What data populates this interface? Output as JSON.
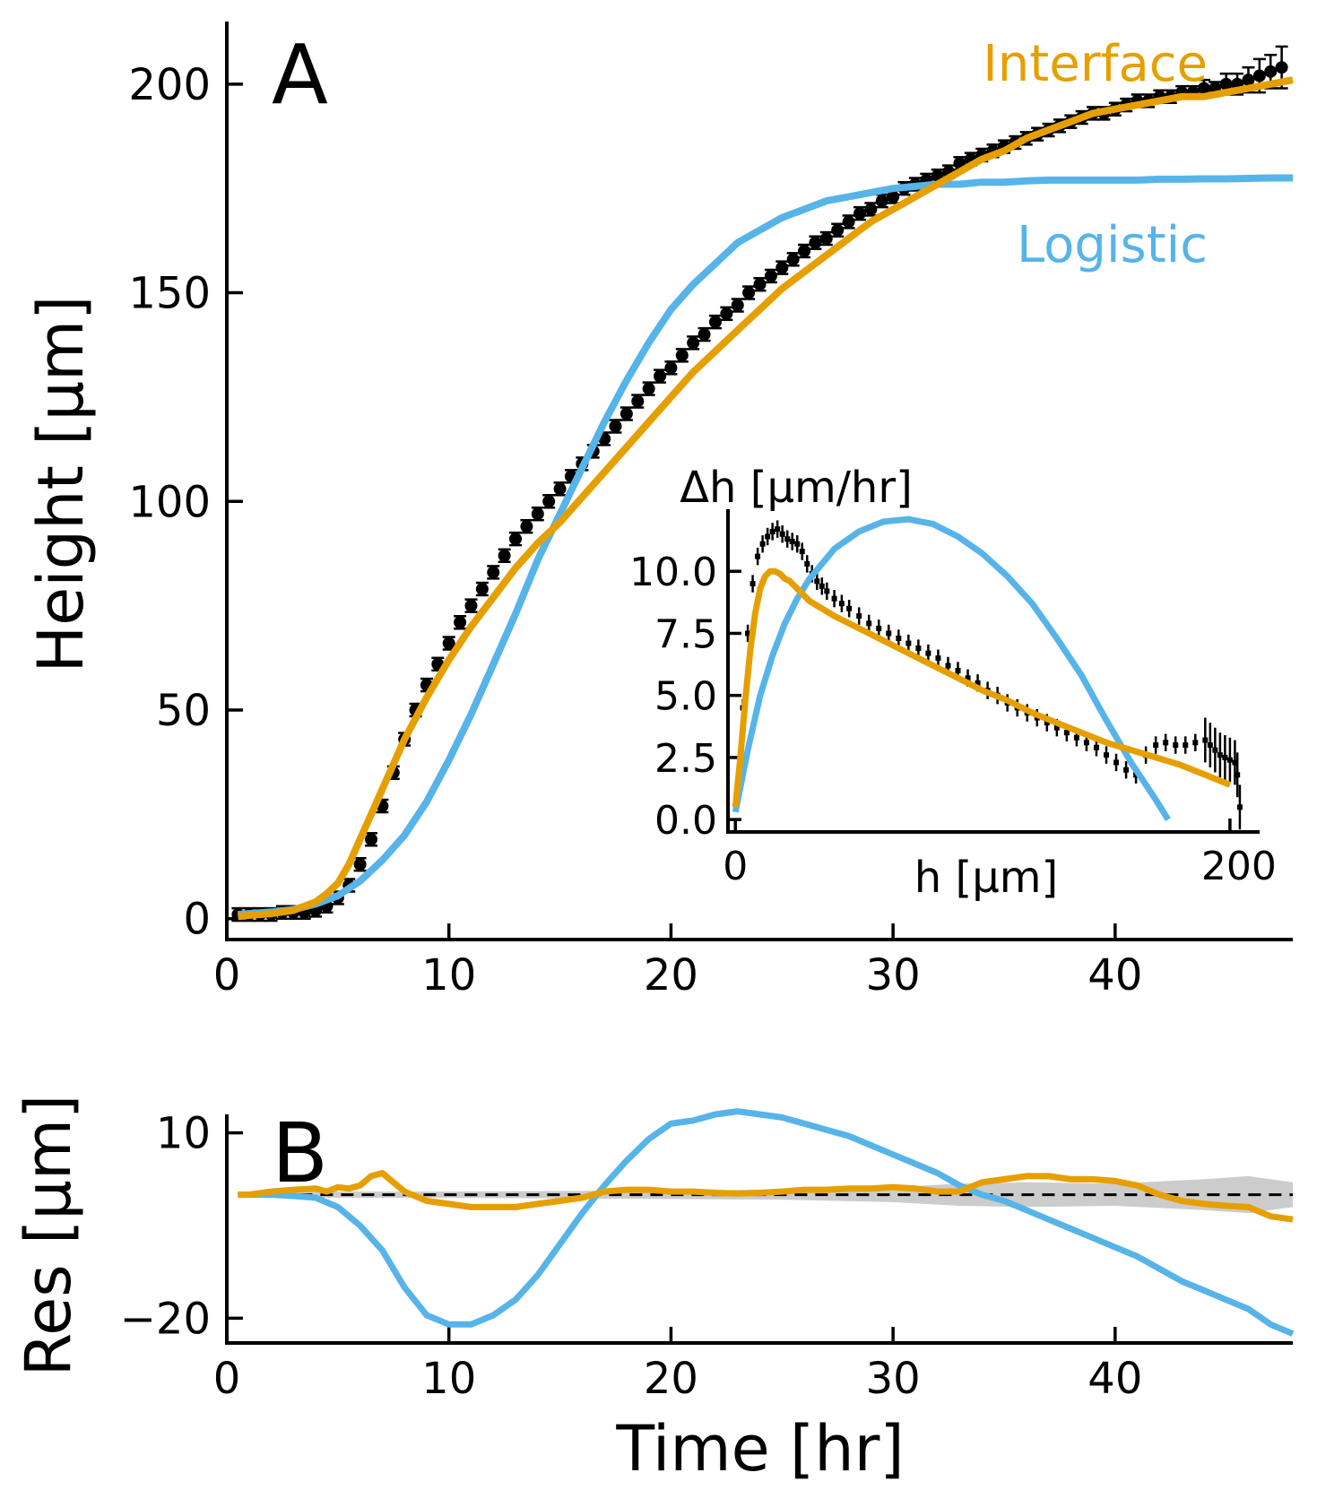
{
  "colors": {
    "interface": "#E69F00",
    "logistic": "#56B4E9",
    "data": "#000000",
    "band": "#cccccc"
  },
  "chart_data": [
    {
      "type": "line",
      "panel": "A",
      "xlabel": "",
      "ylabel": "Height [μm]",
      "xlim": [
        0,
        48
      ],
      "ylim": [
        -5,
        215
      ],
      "xticks": [
        "0",
        "10",
        "20",
        "30",
        "40"
      ],
      "yticks": [
        "0",
        "50",
        "100",
        "150",
        "200"
      ],
      "annotations": [
        "Interface",
        "Logistic"
      ],
      "data_series": {
        "name": "",
        "x": [
          0.5,
          1,
          1.5,
          2,
          2.5,
          3,
          3.5,
          4,
          4.5,
          5,
          5.5,
          6,
          6.5,
          7,
          7.5,
          8,
          8.5,
          9,
          9.5,
          10,
          10.5,
          11,
          11.5,
          12,
          12.5,
          13,
          13.5,
          14,
          14.5,
          15,
          15.5,
          16,
          16.5,
          17,
          17.5,
          18,
          18.5,
          19,
          19.5,
          20,
          20.5,
          21,
          21.5,
          22,
          22.5,
          23,
          23.5,
          24,
          24.5,
          25,
          25.5,
          26,
          26.5,
          27,
          27.5,
          28,
          28.5,
          29,
          29.5,
          30,
          30.5,
          31,
          31.5,
          32,
          32.5,
          33,
          33.5,
          34,
          34.5,
          35,
          35.5,
          36,
          36.5,
          37,
          37.5,
          38,
          38.5,
          39,
          39.5,
          40,
          40.5,
          41,
          41.5,
          42,
          42.5,
          43,
          43.5,
          44,
          44.5,
          45,
          45.5,
          46,
          46.5,
          47,
          47.5
        ],
        "y": [
          1,
          1,
          1,
          1,
          1.5,
          1.5,
          1.5,
          2,
          3,
          5,
          8,
          13,
          19,
          27,
          35,
          43,
          50,
          56,
          61,
          66,
          71,
          75,
          79,
          83,
          87,
          91,
          94,
          97,
          100,
          103,
          106,
          109,
          112,
          115,
          118,
          121,
          124,
          127,
          130,
          132,
          135,
          138,
          140,
          143,
          145,
          147,
          150,
          152,
          154,
          156,
          158,
          160,
          162,
          163,
          165,
          167,
          169,
          170,
          172,
          173,
          175,
          176,
          177,
          178,
          179,
          181,
          182,
          183,
          184,
          185,
          186,
          187,
          188,
          189,
          190,
          191,
          192,
          193,
          193,
          194,
          195,
          196,
          196,
          197,
          197,
          198,
          198,
          199,
          199,
          200,
          200,
          201,
          202,
          203,
          204
        ],
        "err_small": 1.5,
        "err_large": [
          [
            44,
            2
          ],
          [
            45,
            2.5
          ],
          [
            45.5,
            2.5
          ],
          [
            46,
            3
          ],
          [
            46.5,
            4
          ],
          [
            47,
            4
          ],
          [
            47.5,
            5
          ]
        ]
      },
      "series": [
        {
          "name": "Interface",
          "x": [
            0.5,
            1,
            2,
            3,
            4,
            4.5,
            5,
            5.5,
            6,
            6.5,
            7,
            8,
            9,
            10,
            11,
            12,
            13,
            14,
            15,
            16,
            17,
            18,
            19,
            20,
            21,
            22,
            23,
            24,
            25,
            26,
            27,
            28,
            29,
            30,
            31,
            32,
            33,
            34,
            35,
            36,
            37,
            38,
            39,
            40,
            41,
            42,
            43,
            44,
            45,
            46,
            47,
            48
          ],
          "y": [
            0.5,
            0.8,
            1.2,
            2,
            4,
            6,
            8.5,
            13,
            19,
            25,
            31,
            43,
            53,
            62,
            70,
            77,
            84,
            90,
            95,
            101,
            107,
            113,
            119,
            125,
            131,
            136,
            141,
            146,
            151,
            155,
            159,
            163,
            167,
            170,
            173,
            176,
            179,
            182,
            184,
            187,
            189,
            191,
            193,
            194,
            195,
            196,
            197,
            197,
            198,
            199,
            200,
            201
          ]
        },
        {
          "name": "Logistic",
          "x": [
            0.5,
            1,
            2,
            3,
            4,
            5,
            6,
            7,
            8,
            9,
            10,
            11,
            12,
            13,
            14,
            15,
            16,
            17,
            18,
            19,
            20,
            21,
            22,
            23,
            24,
            25,
            26,
            27,
            28,
            29,
            30,
            31,
            32,
            33,
            34,
            35,
            36,
            37,
            38,
            39,
            40,
            41,
            42,
            43,
            44,
            45,
            46,
            47,
            48
          ],
          "y": [
            1,
            1.2,
            1.6,
            2.2,
            3.5,
            5.5,
            9,
            14,
            20,
            28,
            38,
            49,
            61,
            73,
            86,
            97,
            108,
            119,
            129,
            138,
            146,
            152,
            157,
            162,
            165,
            168,
            170,
            172,
            173,
            174,
            175,
            175.5,
            176,
            176,
            176.5,
            176.5,
            176.8,
            177,
            177,
            177,
            177,
            177,
            177.2,
            177.2,
            177.3,
            177.3,
            177.4,
            177.5,
            177.5
          ]
        }
      ]
    },
    {
      "type": "scatter",
      "panel": "A-inset",
      "title": "Δh [μm/hr]",
      "xlabel": "h [μm]",
      "xlim": [
        -3,
        212
      ],
      "ylim": [
        -0.5,
        12.5
      ],
      "xticks": [
        "0",
        "200"
      ],
      "yticks": [
        "0.0",
        "2.5",
        "5.0",
        "7.5",
        "10.0"
      ],
      "data_series": {
        "name": "",
        "x": [
          1,
          3,
          5,
          7,
          9,
          11,
          13,
          15,
          17,
          19,
          21,
          23,
          25,
          27,
          29,
          31,
          33,
          35,
          37,
          40,
          43,
          46,
          50,
          54,
          58,
          62,
          66,
          70,
          74,
          78,
          82,
          86,
          90,
          94,
          98,
          102,
          106,
          110,
          114,
          118,
          122,
          126,
          130,
          134,
          138,
          142,
          146,
          150,
          154,
          158,
          162,
          166,
          170,
          174,
          178,
          182,
          186,
          190,
          192,
          194,
          196,
          198,
          200,
          202,
          203,
          204
        ],
        "y": [
          1,
          4.5,
          7.5,
          9.5,
          10.6,
          11.1,
          11.4,
          11.6,
          11.7,
          11.5,
          11.3,
          11.2,
          11.1,
          10.8,
          10.3,
          9.9,
          9.6,
          9.4,
          9.2,
          8.9,
          8.7,
          8.5,
          8.2,
          7.9,
          7.7,
          7.5,
          7.3,
          7.1,
          6.9,
          6.7,
          6.5,
          6.2,
          6.0,
          5.7,
          5.5,
          5.2,
          5.0,
          4.7,
          4.5,
          4.3,
          4.1,
          3.9,
          3.7,
          3.5,
          3.3,
          3.1,
          2.9,
          2.6,
          2.3,
          2.0,
          1.8,
          2.6,
          3.0,
          3.1,
          3.0,
          3.0,
          3.1,
          3.2,
          3.0,
          2.8,
          2.6,
          2.5,
          2.4,
          2.3,
          1.8,
          0.5
        ]
      },
      "series": [
        {
          "name": "Interface",
          "x": [
            0,
            2,
            4,
            6,
            8,
            10,
            12,
            14,
            16,
            18,
            20,
            22,
            24,
            26,
            28,
            30,
            35,
            40,
            50,
            60,
            70,
            80,
            90,
            100,
            110,
            120,
            130,
            140,
            150,
            160,
            170,
            180,
            190,
            200
          ],
          "y": [
            0.5,
            2.5,
            4.8,
            6.8,
            8.3,
            9.3,
            9.8,
            10.0,
            10.0,
            9.9,
            9.7,
            9.6,
            9.4,
            9.2,
            9.0,
            8.8,
            8.5,
            8.2,
            7.7,
            7.2,
            6.7,
            6.2,
            5.7,
            5.2,
            4.8,
            4.3,
            3.9,
            3.5,
            3.1,
            2.8,
            2.5,
            2.2,
            1.8,
            1.4
          ]
        },
        {
          "name": "Logistic",
          "x": [
            0,
            5,
            10,
            15,
            20,
            25,
            30,
            40,
            50,
            60,
            70,
            80,
            90,
            100,
            110,
            120,
            130,
            140,
            150,
            160,
            170,
            175
          ],
          "y": [
            0.3,
            2.8,
            5.0,
            6.6,
            7.9,
            8.9,
            9.7,
            10.9,
            11.6,
            12.0,
            12.1,
            11.9,
            11.4,
            10.7,
            9.8,
            8.7,
            7.3,
            5.8,
            4.0,
            2.3,
            0.8,
            0
          ]
        }
      ]
    },
    {
      "type": "line",
      "panel": "B",
      "xlabel": "Time [hr]",
      "ylabel": "Res [μm]",
      "xlim": [
        0,
        48
      ],
      "ylim": [
        -24,
        13
      ],
      "xticks": [
        "0",
        "10",
        "20",
        "30",
        "40"
      ],
      "yticks": [
        "10",
        "−20"
      ],
      "reference_line": 0,
      "band": {
        "x": [
          0.5,
          5,
          10,
          15,
          20,
          25,
          30,
          33,
          36,
          40,
          44,
          46,
          47,
          48
        ],
        "halfwidth": [
          0.3,
          0.5,
          0.5,
          0.6,
          0.7,
          0.8,
          1.2,
          1.8,
          2.0,
          1.8,
          2.5,
          3.0,
          2.5,
          2.0
        ]
      },
      "series": [
        {
          "name": "Interface",
          "x": [
            0.5,
            1,
            2,
            3,
            4,
            4.5,
            5,
            5.5,
            6,
            6.5,
            7,
            7.5,
            8,
            9,
            10,
            11,
            12,
            13,
            14,
            15,
            16,
            17,
            18,
            19,
            20,
            21,
            22,
            23,
            24,
            25,
            26,
            27,
            28,
            29,
            30,
            31,
            32,
            33,
            34,
            35,
            36,
            37,
            38,
            39,
            40,
            41,
            42,
            43,
            44,
            45,
            46,
            47,
            48
          ],
          "y": [
            0,
            0,
            0.5,
            0.8,
            1,
            0.5,
            1.2,
            1.0,
            1.5,
            3.0,
            3.5,
            2.0,
            0.5,
            -1.0,
            -1.5,
            -2.0,
            -2.0,
            -2.0,
            -1.5,
            -1.0,
            -0.5,
            0.5,
            0.8,
            0.8,
            0.5,
            0.5,
            0.3,
            0.2,
            0.3,
            0.5,
            0.8,
            0.8,
            1.0,
            1.0,
            1.2,
            1.0,
            0.5,
            0.5,
            2.0,
            2.5,
            3.0,
            3.0,
            2.5,
            2.5,
            2.2,
            1.5,
            0,
            -1.0,
            -1.5,
            -1.8,
            -2.0,
            -3.5,
            -4.0
          ]
        },
        {
          "name": "Logistic",
          "x": [
            0.5,
            1,
            2,
            3,
            4,
            5,
            6,
            7,
            8,
            9,
            10,
            11,
            12,
            13,
            14,
            15,
            16,
            17,
            18,
            19,
            20,
            21,
            22,
            23,
            24,
            25,
            26,
            27,
            28,
            29,
            30,
            31,
            32,
            33,
            34,
            35,
            36,
            37,
            38,
            39,
            40,
            41,
            42,
            43,
            44,
            45,
            46,
            47,
            48
          ],
          "y": [
            0,
            0,
            0,
            -0.2,
            -0.5,
            -2.0,
            -5.0,
            -9.0,
            -15.0,
            -19.5,
            -21.0,
            -21.0,
            -19.5,
            -17.0,
            -13.0,
            -8.0,
            -3.0,
            1.5,
            5.5,
            9.0,
            11.5,
            12.0,
            13.0,
            13.5,
            13.0,
            12.5,
            11.5,
            10.5,
            9.5,
            8.0,
            6.5,
            5.0,
            3.5,
            1.5,
            0,
            -1.0,
            -2.5,
            -4.0,
            -5.5,
            -7.0,
            -8.5,
            -10.0,
            -12.0,
            -14.0,
            -15.5,
            -17.0,
            -18.5,
            -21.0,
            -22.5
          ]
        }
      ]
    }
  ]
}
